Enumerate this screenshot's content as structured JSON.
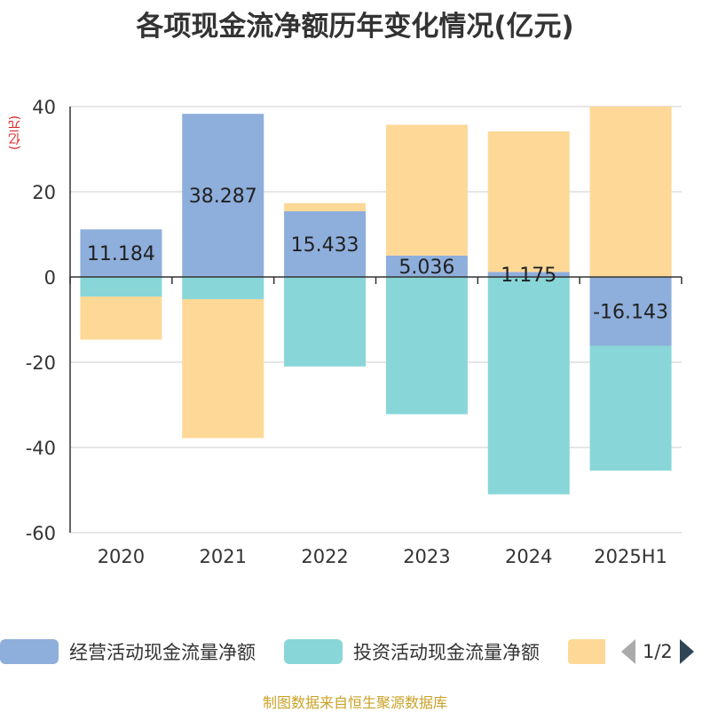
{
  "title": "各项现金流净额历年变化情况(亿元)",
  "unit_label": "(亿元)",
  "source": "制图数据来自恒生聚源数据库",
  "legend": {
    "page": "1/2"
  },
  "colors": {
    "operating": "#8eaedb",
    "investing": "#88d6d8",
    "financing": "#fed897",
    "axis": "#333333",
    "grid": "#cccccc"
  },
  "chart_data": {
    "type": "bar",
    "stacked": true,
    "categories": [
      "2020",
      "2021",
      "2022",
      "2023",
      "2024",
      "2025H1"
    ],
    "ylim": [
      -60,
      40
    ],
    "yticks": [
      40,
      20,
      0,
      -20,
      -40,
      -60
    ],
    "grid": true,
    "legend_position": "bottom",
    "series": [
      {
        "name": "经营活动现金流量净额",
        "values": [
          11.184,
          38.287,
          15.433,
          5.036,
          1.175,
          -16.143
        ],
        "labels": [
          "11.184",
          "38.287",
          "15.433",
          "5.036",
          "1.175",
          "-16.143"
        ]
      },
      {
        "name": "投资活动现金流量净额",
        "values": [
          -4.6,
          -5.2,
          -21.0,
          -32.2,
          -51.0,
          -29.3
        ]
      },
      {
        "name": "",
        "values": [
          -10.1,
          -32.6,
          1.9,
          30.7,
          33.0,
          40.0
        ]
      }
    ]
  }
}
